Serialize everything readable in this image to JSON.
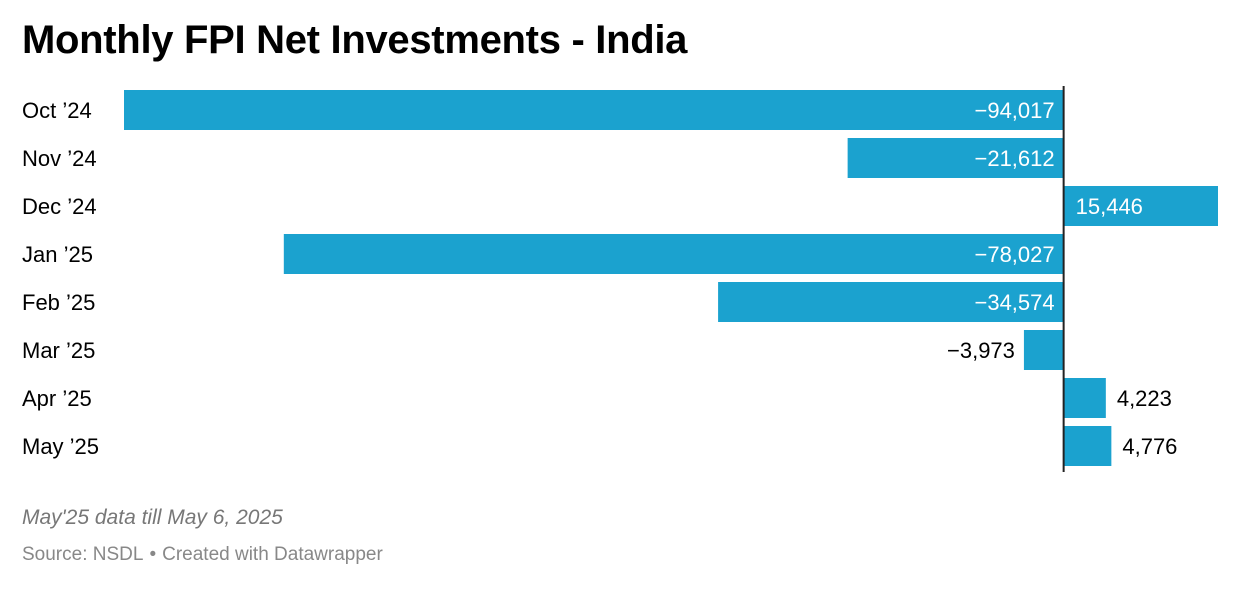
{
  "chart_data": {
    "type": "bar",
    "orientation": "horizontal",
    "title": "Monthly FPI Net Investments - India",
    "categories": [
      "Oct ’24",
      "Nov ’24",
      "Dec ’24",
      "Jan ’25",
      "Feb ’25",
      "Mar ’25",
      "Apr ’25",
      "May ’25"
    ],
    "values": [
      -94017,
      -21612,
      15446,
      -78027,
      -34574,
      -3973,
      4223,
      4776
    ],
    "value_labels": [
      "−94,017",
      "−21,612",
      "15,446",
      "−78,027",
      "−34,574",
      "−3,973",
      "4,223",
      "4,776"
    ],
    "xlim": [
      -94017,
      15446
    ],
    "bar_color": "#1ba2cf",
    "axis_color": "#222222",
    "grid": false,
    "note": "May'25 data till May 6, 2025",
    "source_label": "Source: NSDL",
    "credit": "Created with Datawrapper"
  }
}
